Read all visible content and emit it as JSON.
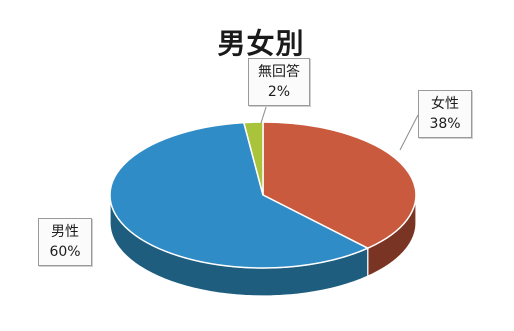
{
  "chart_data": {
    "type": "pie",
    "style": "3d",
    "title": "男女別",
    "categories": [
      "女性",
      "男性",
      "無回答"
    ],
    "values": [
      38,
      60,
      2
    ],
    "percent_labels": [
      "38%",
      "60%",
      "2%"
    ],
    "colors": [
      "#c95a3e",
      "#2f8cc6",
      "#a9c43a"
    ],
    "side_colors": [
      "#7a3424",
      "#1f5d7e",
      "#6b7e22"
    ],
    "legend": "none"
  }
}
